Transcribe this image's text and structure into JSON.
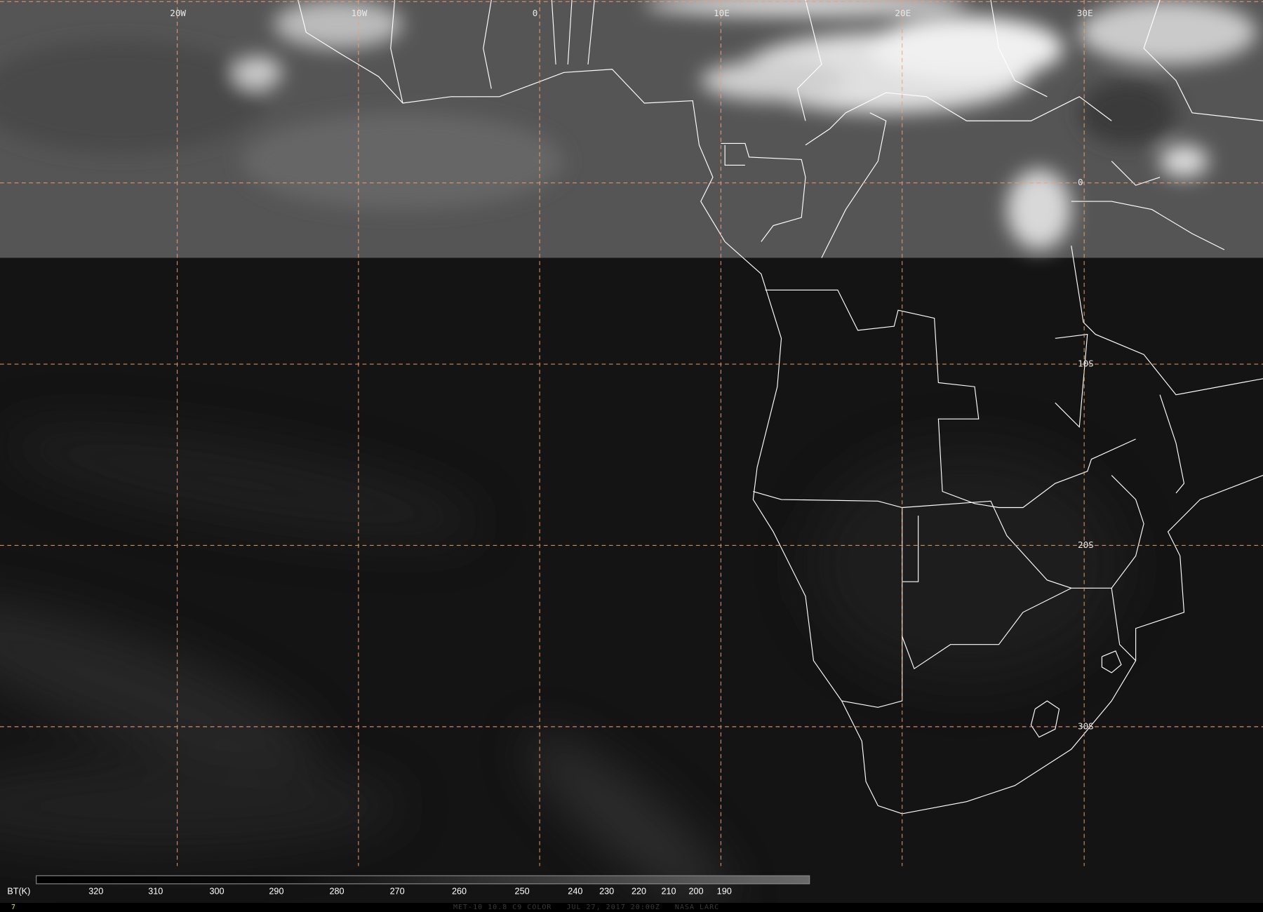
{
  "map": {
    "longitude_labels": [
      "20W",
      "10W",
      "0",
      "10E",
      "20E",
      "30E"
    ],
    "latitude_labels": [
      "0",
      "10S",
      "20S",
      "30S"
    ],
    "grid_color": "#f0a070",
    "border_color": "#ffffff"
  },
  "colorbar": {
    "unit_label": "BT(K)",
    "ticks": [
      "320",
      "310",
      "300",
      "290",
      "280",
      "270",
      "260",
      "250",
      "240",
      "230",
      "220",
      "210",
      "200",
      "190"
    ]
  },
  "footer": {
    "frame_number": "7",
    "caption": "MET-10 10.8 C9 COLOR   JUL 27, 2017 20:00Z   NASA LARC"
  }
}
